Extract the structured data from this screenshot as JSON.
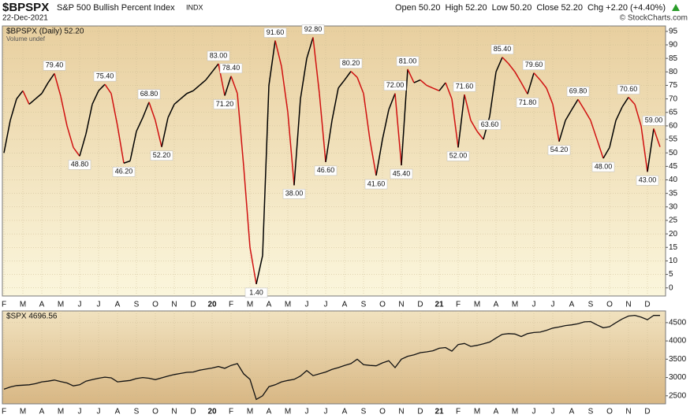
{
  "header": {
    "symbol": "$BPSPX",
    "name": "S&P 500 Bullish Percent Index",
    "exchange": "INDX",
    "date": "22-Dec-2021",
    "quote": [
      [
        "Open",
        "50.20"
      ],
      [
        "High",
        "52.20"
      ],
      [
        "Low",
        "50.20"
      ],
      [
        "Close",
        "52.20"
      ],
      [
        "Chg",
        "+2.20 (+4.40%)"
      ]
    ],
    "credit": "© StockCharts.com"
  },
  "chart_data": [
    {
      "type": "line",
      "legend": [
        "$BPSPX (Daily) 52.20",
        "Volume undef"
      ],
      "up_color": "#000000",
      "down_color": "#d01010",
      "grid": true,
      "ylim": [
        -3,
        97
      ],
      "yticks": [
        0,
        5,
        10,
        15,
        20,
        25,
        30,
        35,
        40,
        45,
        50,
        55,
        60,
        65,
        70,
        75,
        80,
        85,
        90,
        95
      ],
      "categories": [
        "F",
        null,
        null,
        "M",
        null,
        null,
        "A",
        null,
        null,
        "M",
        null,
        null,
        "J",
        null,
        null,
        "J",
        null,
        null,
        "A",
        null,
        null,
        "S",
        null,
        null,
        "O",
        null,
        null,
        "N",
        null,
        null,
        "D",
        null,
        null,
        "20",
        null,
        null,
        "F",
        null,
        null,
        "M",
        null,
        null,
        "A",
        null,
        null,
        "M",
        null,
        null,
        "J",
        null,
        null,
        "J",
        null,
        null,
        "A",
        null,
        null,
        "S",
        null,
        null,
        "O",
        null,
        null,
        "N",
        null,
        null,
        "D",
        null,
        null,
        "21",
        null,
        null,
        "F",
        null,
        null,
        "M",
        null,
        null,
        "A",
        null,
        null,
        "M",
        null,
        null,
        "J",
        null,
        null,
        "J",
        null,
        null,
        "A",
        null,
        null,
        "S",
        null,
        null,
        "O",
        null,
        null,
        "N",
        null,
        null,
        "D",
        null,
        null
      ],
      "values": [
        50,
        62,
        70,
        73,
        68,
        70,
        72,
        76,
        79.4,
        71,
        60,
        52,
        48.8,
        57,
        68,
        73,
        75.4,
        72,
        60,
        46.2,
        47,
        58,
        63,
        68.8,
        62,
        52.2,
        63,
        68,
        70,
        72,
        73,
        75,
        77,
        80,
        83,
        71.2,
        78.4,
        72,
        45,
        15,
        1.4,
        12,
        75,
        91.6,
        82,
        65,
        38,
        70,
        85,
        92.8,
        72,
        46.6,
        62,
        74,
        77,
        80.2,
        78,
        72,
        55,
        41.6,
        55,
        66,
        72,
        45.4,
        81,
        76,
        77,
        75,
        74,
        73,
        76,
        70,
        52,
        71.6,
        62,
        58,
        55,
        63.6,
        80,
        85.4,
        83,
        80,
        76,
        71.8,
        79.6,
        77,
        74,
        68,
        54.2,
        62,
        66,
        69.8,
        66,
        62,
        55,
        48,
        52,
        62,
        67,
        70.6,
        68,
        60,
        43,
        59,
        52.2
      ],
      "value_labels": [
        null,
        null,
        null,
        null,
        null,
        null,
        null,
        null,
        "79.40",
        null,
        null,
        null,
        "48.80",
        null,
        null,
        null,
        "75.40",
        null,
        null,
        "46.20",
        null,
        null,
        null,
        "68.80",
        null,
        "52.20",
        null,
        null,
        null,
        null,
        null,
        null,
        null,
        null,
        "83.00",
        "71.20",
        "78.40",
        null,
        null,
        null,
        "1.40",
        null,
        null,
        "91.60",
        null,
        null,
        "38.00",
        null,
        null,
        "92.80",
        null,
        "46.60",
        null,
        null,
        null,
        "80.20",
        null,
        null,
        null,
        "41.60",
        null,
        null,
        "72.00",
        "45.40",
        "81.00",
        null,
        null,
        null,
        null,
        null,
        null,
        null,
        "52.00",
        "71.60",
        null,
        null,
        null,
        "63.60",
        null,
        "85.40",
        null,
        null,
        null,
        "71.80",
        "79.60",
        null,
        null,
        null,
        "54.20",
        null,
        null,
        "69.80",
        null,
        null,
        null,
        "48.00",
        null,
        null,
        null,
        "70.60",
        null,
        null,
        "43.00",
        "59.00",
        null
      ]
    },
    {
      "type": "line",
      "legend": [
        "$SPX 4696.56"
      ],
      "color": "#111111",
      "grid": true,
      "ylim": [
        2280,
        4820
      ],
      "yticks": [
        2500,
        3000,
        3500,
        4000,
        4500
      ],
      "categories": [
        "F",
        null,
        null,
        "M",
        null,
        null,
        "A",
        null,
        null,
        "M",
        null,
        null,
        "J",
        null,
        null,
        "J",
        null,
        null,
        "A",
        null,
        null,
        "S",
        null,
        null,
        "O",
        null,
        null,
        "N",
        null,
        null,
        "D",
        null,
        null,
        "20",
        null,
        null,
        "F",
        null,
        null,
        "M",
        null,
        null,
        "A",
        null,
        null,
        "M",
        null,
        null,
        "J",
        null,
        null,
        "J",
        null,
        null,
        "A",
        null,
        null,
        "S",
        null,
        null,
        "O",
        null,
        null,
        "N",
        null,
        null,
        "D",
        null,
        null,
        "21",
        null,
        null,
        "F",
        null,
        null,
        "M",
        null,
        null,
        "A",
        null,
        null,
        "M",
        null,
        null,
        "J",
        null,
        null,
        "J",
        null,
        null,
        "A",
        null,
        null,
        "S",
        null,
        null,
        "O",
        null,
        null,
        "N",
        null,
        null,
        "D",
        null,
        null
      ],
      "values": [
        2680,
        2740,
        2780,
        2790,
        2800,
        2830,
        2880,
        2900,
        2930,
        2890,
        2850,
        2770,
        2800,
        2900,
        2940,
        2980,
        3010,
        2990,
        2880,
        2900,
        2920,
        2970,
        3000,
        2980,
        2940,
        2990,
        3040,
        3080,
        3110,
        3140,
        3150,
        3200,
        3230,
        3260,
        3300,
        3250,
        3330,
        3380,
        3100,
        2950,
        2400,
        2500,
        2750,
        2800,
        2880,
        2920,
        2950,
        3040,
        3190,
        3050,
        3100,
        3150,
        3220,
        3270,
        3330,
        3380,
        3500,
        3350,
        3330,
        3320,
        3400,
        3460,
        3270,
        3500,
        3580,
        3620,
        3680,
        3700,
        3730,
        3800,
        3820,
        3720,
        3900,
        3930,
        3850,
        3880,
        3920,
        3970,
        4080,
        4180,
        4200,
        4190,
        4120,
        4200,
        4230,
        4240,
        4290,
        4350,
        4380,
        4420,
        4440,
        4470,
        4520,
        4530,
        4440,
        4360,
        4390,
        4500,
        4600,
        4680,
        4700,
        4650,
        4580,
        4700,
        4696.56
      ]
    }
  ]
}
